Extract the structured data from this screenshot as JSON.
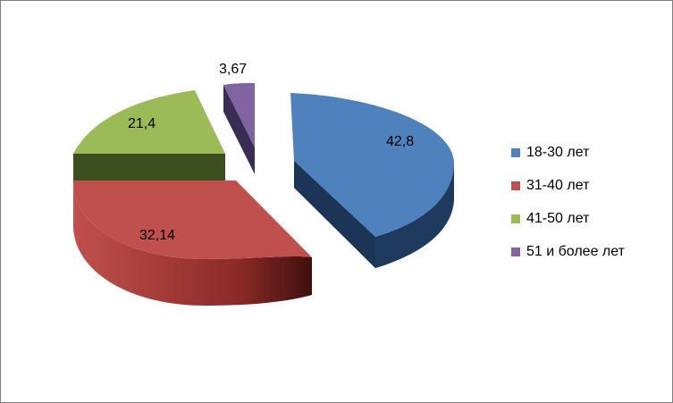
{
  "chart_data": {
    "type": "pie",
    "style": "3d-exploded",
    "categories": [
      "18-30 лет",
      "31-40 лет",
      "41-50 лет",
      "51 и более лет"
    ],
    "values": [
      42.8,
      32.14,
      21.4,
      3.67
    ],
    "value_labels": [
      "42,8",
      "32,14",
      "21,4",
      "3,67"
    ],
    "colors": [
      "#4f81bd",
      "#c0504d",
      "#9bbb59",
      "#8064a2"
    ],
    "side_colors": [
      "#1f3a5f",
      "#6b1f1d",
      "#3d4f1e",
      "#3a2d55"
    ],
    "legend_position": "right"
  }
}
